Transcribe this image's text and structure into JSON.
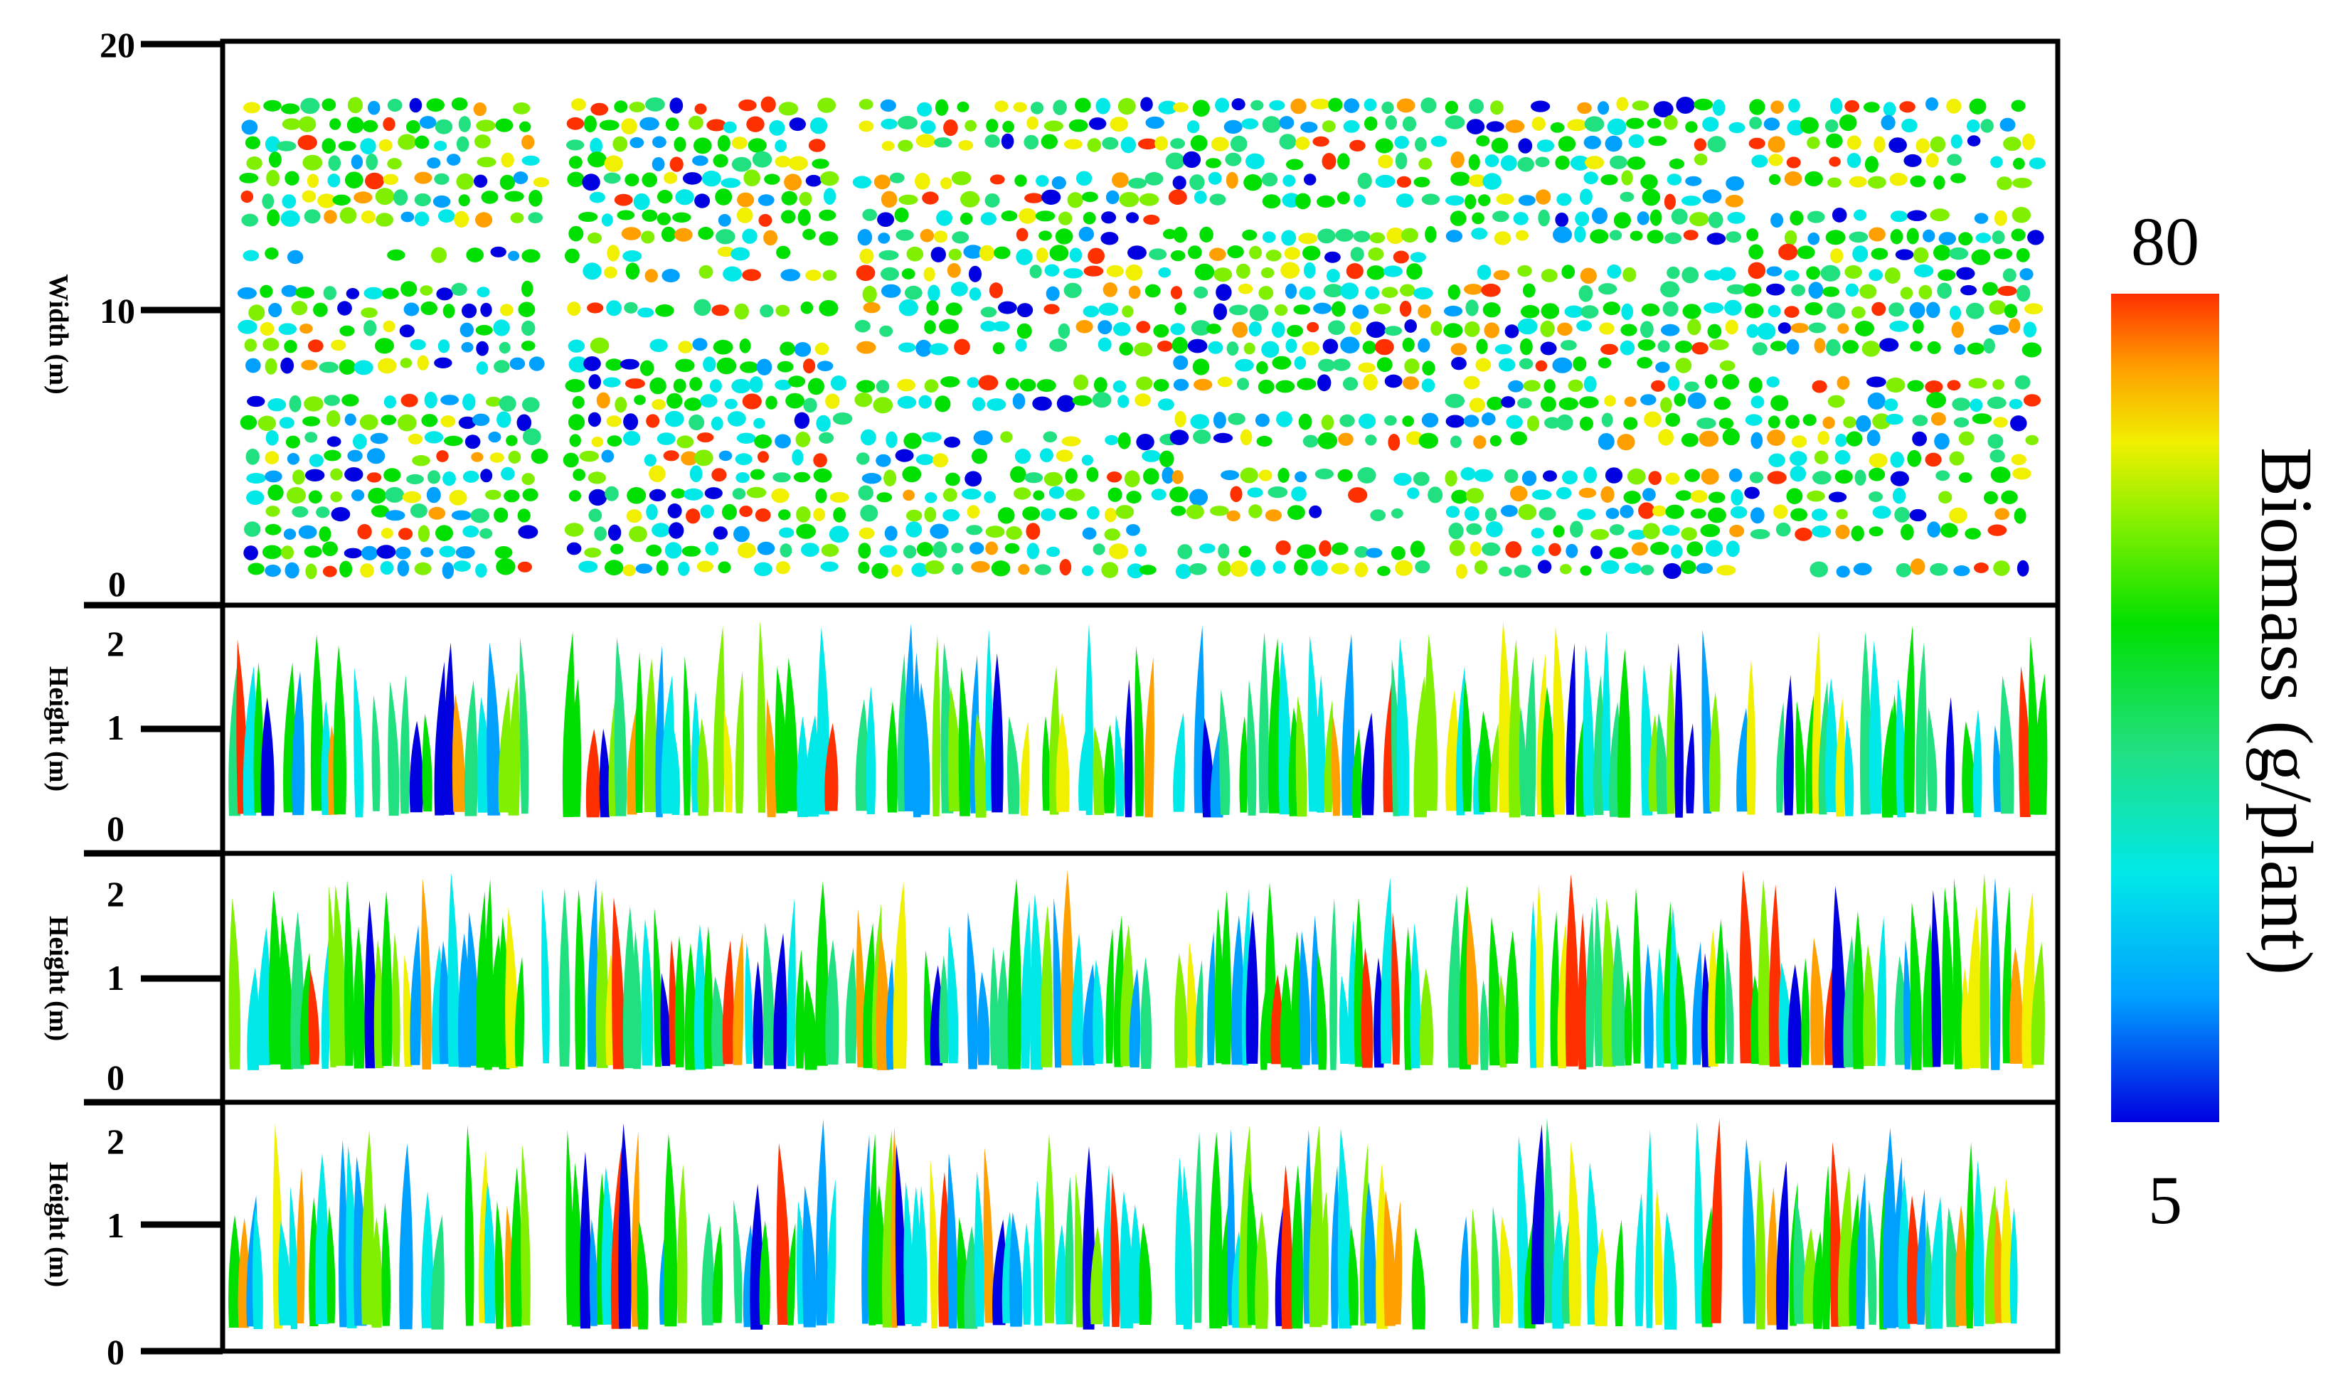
{
  "chart_data": [
    {
      "type": "scatter",
      "panel": "top view",
      "ylabel": "Width (m)",
      "ylim": [
        0,
        20
      ],
      "yticks": [
        "0",
        "10",
        "20"
      ],
      "grid": false,
      "description_of_marks": "point cloud of individual plants colored by estimated biomass"
    },
    {
      "type": "scatter",
      "panel": "side view 1",
      "ylabel": "Height (m)",
      "ylim": [
        0,
        2
      ],
      "yticks": [
        "0",
        "1",
        "2"
      ],
      "grid": false
    },
    {
      "type": "scatter",
      "panel": "side view 2",
      "ylabel": "Height (m)",
      "ylim": [
        0,
        2
      ],
      "yticks": [
        "0",
        "1",
        "2"
      ],
      "grid": false
    },
    {
      "type": "scatter",
      "panel": "side view 3",
      "ylabel": "Height (m)",
      "ylim": [
        0,
        2
      ],
      "yticks": [
        "0",
        "1",
        "2"
      ],
      "grid": false
    }
  ],
  "colorbar": {
    "label": "Biomass (g/plant)",
    "max_label": "80",
    "min_label": "5",
    "range": [
      5,
      80
    ],
    "colormap": [
      "#0000e0",
      "#00a0ff",
      "#00e8e8",
      "#20e080",
      "#00e000",
      "#80f000",
      "#f0f000",
      "#ffa000",
      "#ff3000"
    ]
  }
}
